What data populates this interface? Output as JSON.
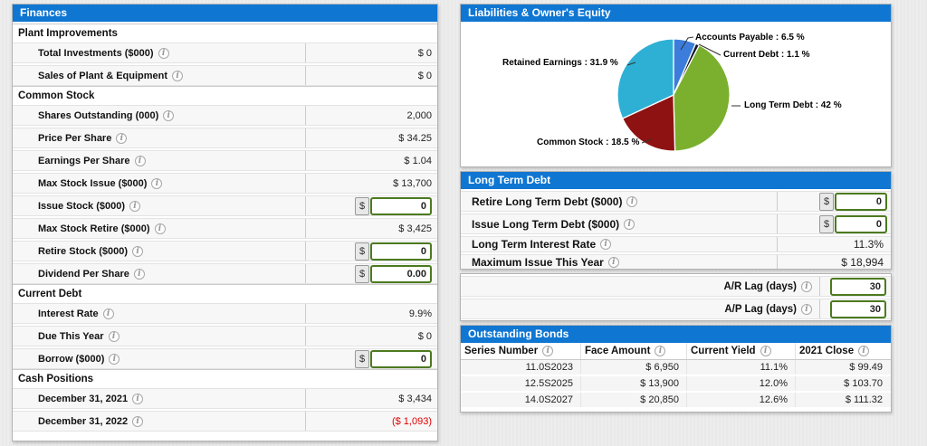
{
  "colors": {
    "header_blue": "#0f76d2",
    "input_border_green": "#4c7a1f",
    "negative_red": "#e00000",
    "row_gray": "#f7f7f7"
  },
  "finances": {
    "title": "Finances",
    "sections": [
      {
        "label": "Plant Improvements",
        "rows": [
          {
            "label": "Total Investments ($000)",
            "value": "$ 0",
            "type": "static"
          },
          {
            "label": "Sales of Plant & Equipment",
            "value": "$ 0",
            "type": "static"
          }
        ]
      },
      {
        "label": "Common Stock",
        "rows": [
          {
            "label": "Shares Outstanding (000)",
            "value": "2,000",
            "type": "static"
          },
          {
            "label": "Price Per Share",
            "value": "$ 34.25",
            "type": "static"
          },
          {
            "label": "Earnings Per Share",
            "value": "$ 1.04",
            "type": "static"
          },
          {
            "label": "Max Stock Issue ($000)",
            "value": "$ 13,700",
            "type": "static"
          },
          {
            "label": "Issue Stock ($000)",
            "prefix": "$",
            "value": "0",
            "type": "input"
          },
          {
            "label": "Max Stock Retire ($000)",
            "value": "$ 3,425",
            "type": "static"
          },
          {
            "label": "Retire Stock ($000)",
            "prefix": "$",
            "value": "0",
            "type": "input"
          },
          {
            "label": "Dividend Per Share",
            "prefix": "$",
            "value": "0.00",
            "type": "input"
          }
        ]
      },
      {
        "label": "Current Debt",
        "rows": [
          {
            "label": "Interest Rate",
            "value": "9.9%",
            "type": "static"
          },
          {
            "label": "Due This Year",
            "value": "$ 0",
            "type": "static"
          },
          {
            "label": "Borrow ($000)",
            "prefix": "$",
            "value": "0",
            "type": "input"
          }
        ]
      },
      {
        "label": "Cash Positions",
        "rows": [
          {
            "label": "December 31, 2021",
            "value": "$ 3,434",
            "type": "static"
          },
          {
            "label": "December 31, 2022",
            "value": "($ 1,093)",
            "type": "static",
            "negative": true
          }
        ]
      }
    ]
  },
  "chart_data": {
    "type": "pie",
    "title": "Liabilities & Owner's Equity",
    "direction": "clockwise",
    "start_angle_deg": 0,
    "legend_position": "callout-labels",
    "slices": [
      {
        "label": "Accounts Payable",
        "value": 6.5,
        "color": "#3c7cdb",
        "display": "Accounts Payable : 6.5 %"
      },
      {
        "label": "Current Debt",
        "value": 1.1,
        "color": "#16182f",
        "display": "Current Debt : 1.1 %"
      },
      {
        "label": "Long Term Debt",
        "value": 42,
        "color": "#7ab02d",
        "display": "Long Term Debt : 42 %"
      },
      {
        "label": "Common Stock",
        "value": 18.5,
        "color": "#8e1212",
        "display": "Common Stock : 18.5 %"
      },
      {
        "label": "Retained Earnings",
        "value": 31.9,
        "color": "#2eb0d4",
        "display": "Retained Earnings : 31.9 %"
      }
    ]
  },
  "long_term_debt": {
    "title": "Long Term Debt",
    "rows": [
      {
        "label": "Retire Long Term Debt ($000)",
        "prefix": "$",
        "value": "0",
        "type": "input"
      },
      {
        "label": "Issue Long Term Debt ($000)",
        "prefix": "$",
        "value": "0",
        "type": "input"
      },
      {
        "label": "Long Term Interest Rate",
        "value": "11.3%",
        "type": "static"
      },
      {
        "label": "Maximum Issue This Year",
        "value": "$ 18,994",
        "type": "static"
      }
    ]
  },
  "lags": {
    "rows": [
      {
        "label": "A/R Lag (days)",
        "value": "30"
      },
      {
        "label": "A/P Lag (days)",
        "value": "30"
      }
    ]
  },
  "bonds": {
    "title": "Outstanding Bonds",
    "columns": [
      "Series Number",
      "Face Amount",
      "Current Yield",
      "2021 Close"
    ],
    "rows": [
      [
        "11.0S2023",
        "$ 6,950",
        "11.1%",
        "$ 99.49"
      ],
      [
        "12.5S2025",
        "$ 13,900",
        "12.0%",
        "$ 103.70"
      ],
      [
        "14.0S2027",
        "$ 20,850",
        "12.6%",
        "$ 111.32"
      ]
    ]
  }
}
